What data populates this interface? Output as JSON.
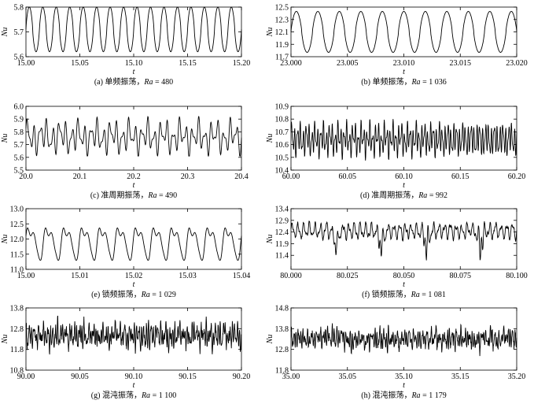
{
  "figure": {
    "panels": [
      {
        "caption": "(a) 单频振荡，Ra = 480"
      },
      {
        "caption": "(b) 单频振荡，Ra = 1 036"
      },
      {
        "caption": "(c) 准周期振荡，Ra = 490"
      },
      {
        "caption": "(d) 准周期振荡，Ra = 992"
      },
      {
        "caption": "(e) 锁频振荡，Ra = 1 029"
      },
      {
        "caption": "(f) 锁频振荡，Ra = 1 081"
      },
      {
        "caption": "(g) 混沌振荡，Ra = 1 100"
      },
      {
        "caption": "(h) 混沌振荡，Ra = 1 179"
      }
    ]
  },
  "chart_data": [
    {
      "id": "a",
      "type": "line",
      "xlabel": "t",
      "ylabel": "Nu",
      "caption": {
        "label": "(a) 单频振荡，",
        "ra_symbol": "Ra",
        "ra_text": " = 480"
      },
      "xlim": [
        15.0,
        15.2
      ],
      "ylim": [
        5.6,
        5.8
      ],
      "xticks": [
        "15.00",
        "15.05",
        "15.10",
        "15.15",
        "15.20"
      ],
      "yticks": [
        "5.6",
        "5.7",
        "5.8"
      ],
      "signal": {
        "kind": "single",
        "mean": 5.71,
        "amp": 0.09,
        "cycles": 16,
        "min_max": [
          5.62,
          5.8
        ]
      }
    },
    {
      "id": "b",
      "type": "line",
      "xlabel": "t",
      "ylabel": "Nu",
      "caption": {
        "label": "(b) 单频振荡，",
        "ra_symbol": "Ra",
        "ra_text": " = 1 036"
      },
      "xlim": [
        23.0,
        23.02
      ],
      "ylim": [
        11.7,
        12.5
      ],
      "xticks": [
        "23.000",
        "23.005",
        "23.010",
        "23.015",
        "23.020"
      ],
      "yticks": [
        "11.7",
        "11.9",
        "12.1",
        "12.3",
        "12.5"
      ],
      "signal": {
        "kind": "single",
        "mean": 12.1,
        "amp": 0.33,
        "cycles": 10.5,
        "min_max": [
          11.77,
          12.43
        ]
      }
    },
    {
      "id": "c",
      "type": "line",
      "xlabel": "t",
      "ylabel": "Nu",
      "caption": {
        "label": "(c) 准周期振荡，",
        "ra_symbol": "Ra",
        "ra_text": " = 490"
      },
      "xlim": [
        20.0,
        20.4
      ],
      "ylim": [
        5.5,
        6.0
      ],
      "xticks": [
        "20.0",
        "20.1",
        "20.2",
        "20.3",
        "20.4"
      ],
      "yticks": [
        "5.5",
        "5.6",
        "5.7",
        "5.8",
        "5.9",
        "6.0"
      ],
      "signal": {
        "kind": "quasi",
        "mean": 5.76,
        "amp": 0.15,
        "cycles": 34,
        "min_max": [
          5.61,
          5.92
        ]
      }
    },
    {
      "id": "d",
      "type": "line",
      "xlabel": "t",
      "ylabel": "Nu",
      "caption": {
        "label": "(d) 准周期振荡，",
        "ra_symbol": "Ra",
        "ra_text": " = 992"
      },
      "xlim": [
        60.0,
        60.2
      ],
      "ylim": [
        10.4,
        10.9
      ],
      "xticks": [
        "60.00",
        "60.05",
        "60.10",
        "60.15",
        "60.20"
      ],
      "yticks": [
        "10.4",
        "10.5",
        "10.6",
        "10.7",
        "10.8",
        "10.9"
      ],
      "signal": {
        "kind": "quasi",
        "mean": 10.64,
        "amp": 0.15,
        "cycles": 78,
        "min_max": [
          10.45,
          10.8
        ]
      }
    },
    {
      "id": "e",
      "type": "line",
      "xlabel": "t",
      "ylabel": "Nu",
      "caption": {
        "label": "(e) 锁频振荡，",
        "ra_symbol": "Ra",
        "ra_text": " = 1 029"
      },
      "xlim": [
        15.0,
        15.04
      ],
      "ylim": [
        11.0,
        13.0
      ],
      "xticks": [
        "15.00",
        "15.01",
        "15.02",
        "15.03",
        "15.04"
      ],
      "yticks": [
        "11.0",
        "11.5",
        "12.0",
        "12.5",
        "13.0"
      ],
      "signal": {
        "kind": "locked",
        "mean": 11.9,
        "amp": 0.65,
        "cycles": 12,
        "min_max": [
          11.3,
          12.55
        ]
      }
    },
    {
      "id": "f",
      "type": "line",
      "xlabel": "t",
      "ylabel": "Nu",
      "caption": {
        "label": "(f) 锁频振荡，",
        "ra_symbol": "Ra",
        "ra_text": " = 1 081"
      },
      "xlim": [
        80.0,
        80.1
      ],
      "ylim": [
        10.8,
        13.4
      ],
      "xticks": [
        "80.000",
        "80.025",
        "80.050",
        "80.075",
        "80.100"
      ],
      "yticks": [
        "11.4",
        "11.9",
        "12.4",
        "12.9",
        "13.4"
      ],
      "signal": {
        "kind": "bursting",
        "mean": 12.45,
        "amp": 0.5,
        "cycles": 40,
        "min_max": [
          11.1,
          13.15
        ]
      }
    },
    {
      "id": "g",
      "type": "line",
      "xlabel": "t",
      "ylabel": "Nu",
      "caption": {
        "label": "(g) 混沌振荡，",
        "ra_symbol": "Ra",
        "ra_text": " = 1 100"
      },
      "xlim": [
        90.0,
        90.2
      ],
      "ylim": [
        10.8,
        13.8
      ],
      "xticks": [
        "90.00",
        "90.05",
        "90.10",
        "90.15",
        "90.20"
      ],
      "yticks": [
        "10.8",
        "11.8",
        "12.8",
        "13.8"
      ],
      "signal": {
        "kind": "chaos",
        "mean": 12.45,
        "amp": 0.65,
        "cycles": 90,
        "min_max": [
          11.3,
          13.6
        ]
      }
    },
    {
      "id": "h",
      "type": "line",
      "xlabel": "t",
      "ylabel": "Nu",
      "caption": {
        "label": "(h) 混沌振荡，",
        "ra_symbol": "Ra",
        "ra_text": " = 1 179"
      },
      "xlim": [
        35.0,
        35.2
      ],
      "ylim": [
        11.8,
        14.8
      ],
      "xticks": [
        "35.00",
        "35.05",
        "35.10",
        "35.15",
        "35.20"
      ],
      "yticks": [
        "11.8",
        "12.8",
        "13.8",
        "14.8"
      ],
      "signal": {
        "kind": "chaos",
        "mean": 13.3,
        "amp": 0.5,
        "cycles": 100,
        "min_max": [
          12.3,
          14.4
        ]
      }
    }
  ]
}
